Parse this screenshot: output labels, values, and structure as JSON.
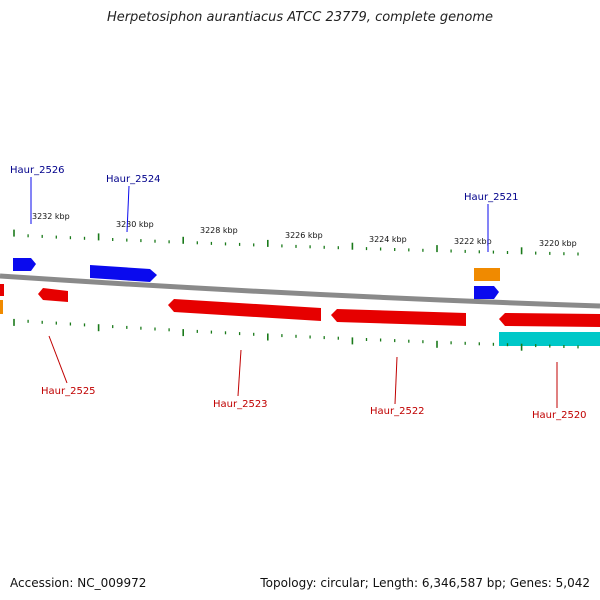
{
  "title": "Herpetosiphon aurantiacus ATCC 23779, complete genome",
  "footer": {
    "accession": "Accession: NC_009972",
    "topology": "Topology: circular; Length: 6,346,587 bp; Genes: 5,042"
  },
  "colors": {
    "forward_cds": "#0a0aee",
    "reverse_cds": "#e60000",
    "rna": "#f08a00",
    "other": "#00c8c8",
    "tick": "#1a7a1a",
    "backbone": "#8a8a8a",
    "forward_label": "#00008b",
    "reverse_label": "#c00000"
  },
  "ticks": [
    {
      "label": "3232 kbp"
    },
    {
      "label": "3230 kbp"
    },
    {
      "label": "3228 kbp"
    },
    {
      "label": "3226 kbp"
    },
    {
      "label": "3224 kbp"
    },
    {
      "label": "3222 kbp"
    },
    {
      "label": "3220 kbp"
    }
  ],
  "genes": [
    {
      "name": "Haur_2526",
      "strand": "forward"
    },
    {
      "name": "Haur_2524",
      "strand": "forward"
    },
    {
      "name": "Haur_2521",
      "strand": "forward"
    },
    {
      "name": "Haur_2525",
      "strand": "reverse"
    },
    {
      "name": "Haur_2523",
      "strand": "reverse"
    },
    {
      "name": "Haur_2522",
      "strand": "reverse"
    },
    {
      "name": "Haur_2520",
      "strand": "reverse"
    }
  ]
}
